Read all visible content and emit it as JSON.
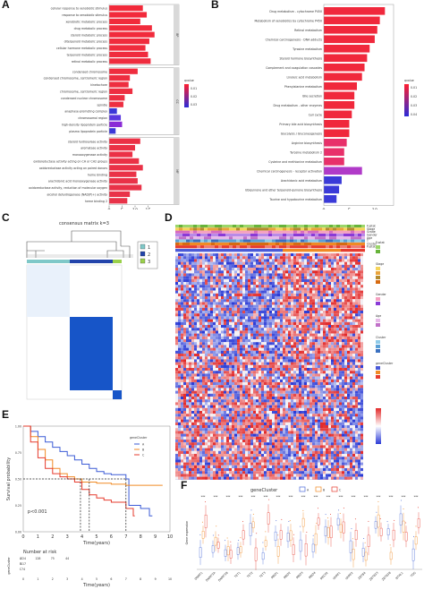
{
  "panels": {
    "a": "A",
    "b": "B",
    "c": "C",
    "d": "D",
    "e": "E",
    "f": "F"
  },
  "panelA": {
    "groups": [
      {
        "tag": "BP",
        "items": [
          {
            "label": "cellular response to xenobiotic stimulus",
            "value": 13
          },
          {
            "label": "response to xenobiotic stimulus",
            "value": 14.5
          },
          {
            "label": "xenobiotic metabolic process",
            "value": 12
          },
          {
            "label": "drug metabolic process",
            "value": 16.5
          },
          {
            "label": "steroid metabolic process",
            "value": 17.5
          },
          {
            "label": "diterpenoid metabolic process",
            "value": 15.5
          },
          {
            "label": "cellular hormone metabolic process",
            "value": 14
          },
          {
            "label": "terpenoid metabolic process",
            "value": 15
          },
          {
            "label": "retinol metabolic process",
            "value": 16
          }
        ]
      },
      {
        "tag": "CC",
        "items": [
          {
            "label": "condensed chromosome",
            "value": 11
          },
          {
            "label": "condensed chromosome, centromeric region",
            "value": 8
          },
          {
            "label": "kinetochore",
            "value": 7.5
          },
          {
            "label": "chromosome, centromeric region",
            "value": 9
          },
          {
            "label": "condensed nuclear chromosome",
            "value": 6
          },
          {
            "label": "spindle",
            "value": 5.5
          },
          {
            "label": "anaphase-promoting complex",
            "value": 3
          },
          {
            "label": "chromosomal region",
            "value": 4.5
          },
          {
            "label": "high-density lipoprotein particle",
            "value": 5
          },
          {
            "label": "plasma lipoprotein particle",
            "value": 2.5
          }
        ]
      },
      {
        "tag": "MF",
        "items": [
          {
            "label": "steroid hydroxylase activity",
            "value": 12
          },
          {
            "label": "aromatase activity",
            "value": 10
          },
          {
            "label": "monooxygenase activity",
            "value": 9
          },
          {
            "label": "oxidoreductase activity acting on CH or CH2 groups",
            "value": 11.5
          },
          {
            "label": "oxidoreductase activity acting on paired donors",
            "value": 13
          },
          {
            "label": "heme binding",
            "value": 10.5
          },
          {
            "label": "arachidonic acid monooxygenase activity",
            "value": 11
          },
          {
            "label": "oxidoreductase activity, reduction of molecular oxygen",
            "value": 12.5
          },
          {
            "label": "alcohol dehydrogenase (NAD(P)+) activity",
            "value": 8
          },
          {
            "label": "heme binding 2",
            "value": 7
          }
        ]
      }
    ],
    "axis_ticks": [
      "0",
      "5",
      "10",
      "15"
    ],
    "legend_title": "qvalue",
    "legend_ticks": [
      "0.01",
      "0.02",
      "0.03"
    ]
  },
  "panelB": {
    "items": [
      {
        "label": "Drug metabolism - cytochrome P450",
        "value": 12
      },
      {
        "label": "Metabolism of xenobiotics by cytochrome P450",
        "value": 11
      },
      {
        "label": "Retinol metabolism",
        "value": 10.5
      },
      {
        "label": "Chemical carcinogenesis - DNA adducts",
        "value": 10
      },
      {
        "label": "Tyrosine metabolism",
        "value": 9
      },
      {
        "label": "Steroid hormone biosynthesis",
        "value": 8.5
      },
      {
        "label": "Complement and coagulation cascades",
        "value": 8
      },
      {
        "label": "Linoleic acid metabolism",
        "value": 7.5
      },
      {
        "label": "Phenylalanine metabolism",
        "value": 6.5
      },
      {
        "label": "Bile secretion",
        "value": 6
      },
      {
        "label": "Drug metabolism - other enzymes",
        "value": 6
      },
      {
        "label": "Cell cycle",
        "value": 5.5
      },
      {
        "label": "Primary bile acid biosynthesis",
        "value": 5
      },
      {
        "label": "Glycolysis / Gluconeogenesis",
        "value": 5
      },
      {
        "label": "Arginine biosynthesis",
        "value": 4.5
      },
      {
        "label": "Tyrosine metabolism 2",
        "value": 4
      },
      {
        "label": "Cysteine and methionine metabolism",
        "value": 4
      },
      {
        "label": "Chemical carcinogenesis - receptor activation",
        "value": 7.5
      },
      {
        "label": "Arachidonic acid metabolism",
        "value": 3.5
      },
      {
        "label": "Ubiquinone and other terpenoid-quinone biosynthesis",
        "value": 3
      },
      {
        "label": "Taurine and hypotaurine metabolism",
        "value": 2.5
      }
    ],
    "axis_ticks": [
      "0",
      "5",
      "10"
    ],
    "legend_title": "qvalue",
    "legend_ticks": [
      "0.01",
      "0.02",
      "0.03",
      "0.04"
    ]
  },
  "panelC": {
    "title": "consensus matrix k=3",
    "legend": [
      "1",
      "2",
      "3"
    ]
  },
  "panelD": {
    "annotation_rows": [
      "Fustat",
      "Stage",
      "Grade",
      "Gender",
      "Age",
      "T",
      "Cluster",
      "Fustat2"
    ],
    "legend_titles": [
      "Fustat",
      "Stage",
      "Gender",
      "Age",
      "Cluster",
      "geneCluster"
    ]
  },
  "panelE": {
    "ylabel": "Survival probability",
    "xlabel": "Time(years)",
    "pvalue": "p<0.001",
    "legend_title": "geneCluster",
    "legend": [
      "A",
      "B",
      "C"
    ],
    "colors": {
      "A": "#3b5bd6",
      "B": "#f08a24",
      "C": "#e63b2e"
    },
    "x_ticks": [
      "0",
      "1",
      "2",
      "3",
      "4",
      "5",
      "6",
      "7",
      "8",
      "9",
      "10"
    ],
    "y_ticks": [
      "0.00",
      "0.25",
      "0.50",
      "0.75",
      "1.00"
    ],
    "risk_title": "Number at risk",
    "risk_rows": [
      {
        "label": "A",
        "values": [
          "224",
          "128",
          "75",
          "44",
          "",
          "",
          "",
          "",
          ""
        ]
      },
      {
        "label": "B",
        "values": [
          "117",
          "",
          "",
          "",
          "",
          "",
          "",
          "",
          ""
        ]
      },
      {
        "label": "C",
        "values": [
          "74",
          "",
          "",
          "",
          "",
          "",
          "",
          "",
          ""
        ]
      }
    ],
    "risk_ylabel": "geneCluster",
    "risk_xlabel": "Time(years)"
  },
  "panelF": {
    "ylabel": "Gene expression",
    "legend_title": "geneCluster",
    "legend": [
      "A",
      "B",
      "C"
    ],
    "sig": "***",
    "genes": [
      "DNMT1",
      "DNMT3A",
      "DNMT3B",
      "TET1",
      "TET2",
      "TET3",
      "MBD1",
      "MBD2",
      "MBD3",
      "MBD4",
      "MECP2",
      "UHRF1",
      "UHRF2",
      "ZBTB4",
      "ZBTB33",
      "ZBTB38",
      "NTHL1",
      "TDG"
    ]
  }
}
